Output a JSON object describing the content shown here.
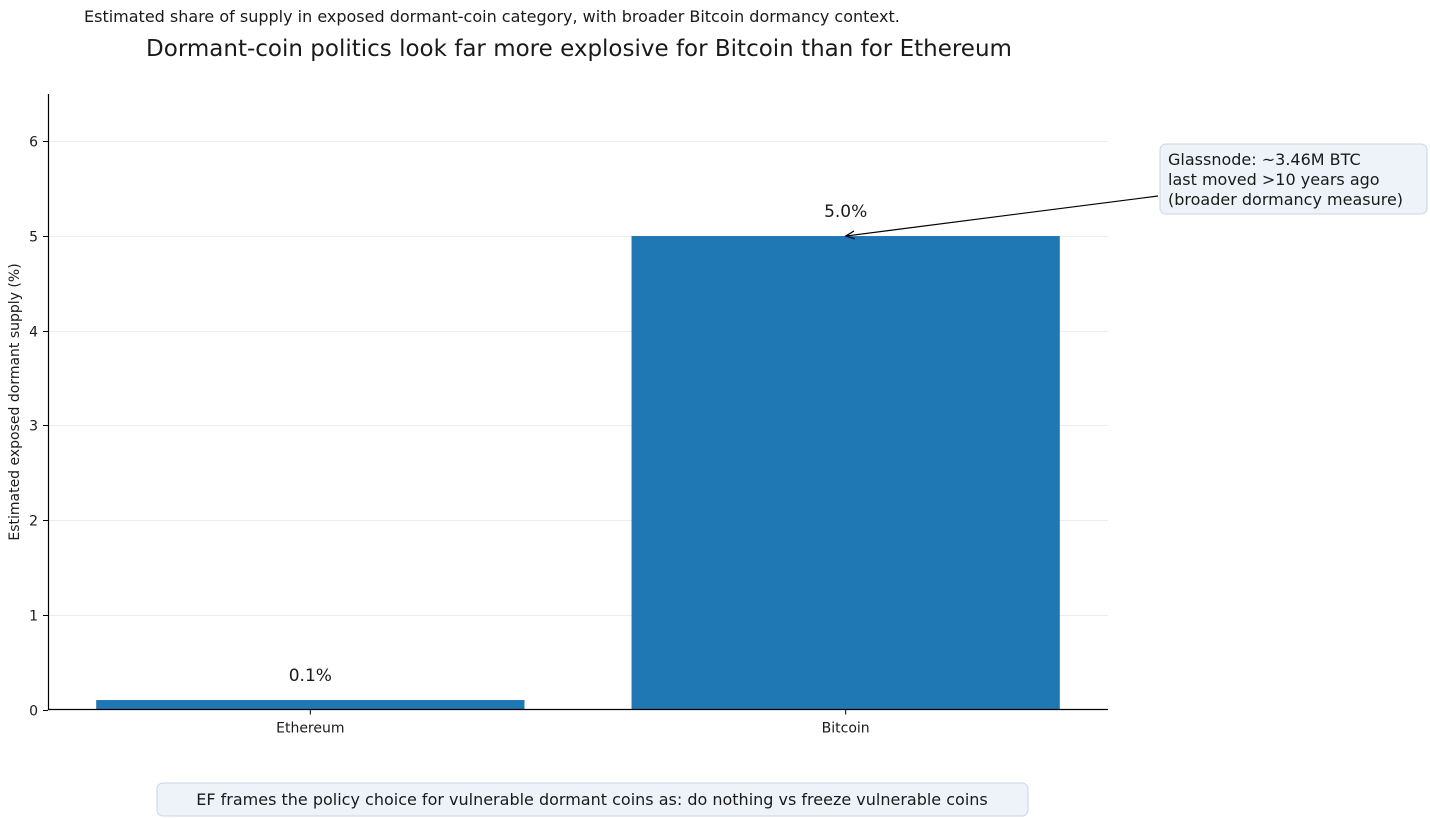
{
  "chart_data": {
    "type": "bar",
    "subtitle": "Estimated share of supply in exposed dormant-coin category, with broader Bitcoin dormancy context.",
    "title": "Dormant-coin politics look far more explosive for Bitcoin than for Ethereum",
    "xlabel": "",
    "ylabel": "Estimated exposed dormant supply (%)",
    "categories": [
      "Ethereum",
      "Bitcoin"
    ],
    "values": [
      0.1,
      5.0
    ],
    "data_labels": [
      "0.1%",
      "5.0%"
    ],
    "ylim": [
      0,
      6.5
    ],
    "yticks": [
      0,
      1,
      2,
      3,
      4,
      5,
      6
    ],
    "grid": "horizontal",
    "bar_color": "#1f77b4",
    "annotation": {
      "lines": [
        "Glassnode: ~3.46M BTC",
        "last moved >10 years ago",
        "(broader dormancy measure)"
      ],
      "points_to": "Bitcoin",
      "box_color": "#edf3f8"
    },
    "footnote": "EF frames the policy choice for vulnerable dormant coins as: do nothing vs freeze vulnerable coins"
  }
}
